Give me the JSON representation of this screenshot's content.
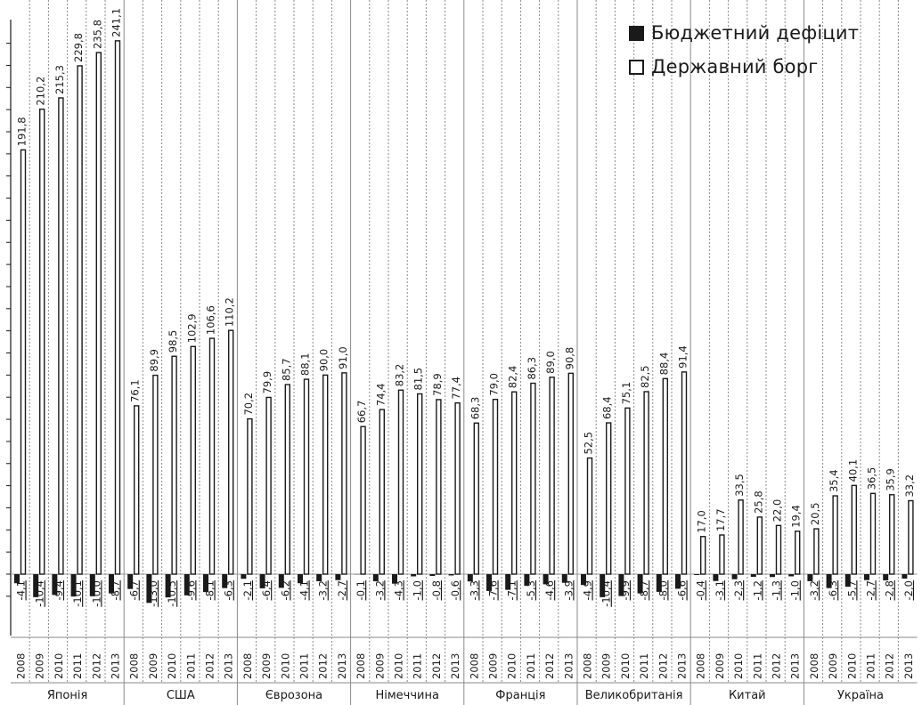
{
  "chart_data": {
    "type": "bar",
    "categories": [
      "Японія",
      "США",
      "Єврозона",
      "Німеччина",
      "Франція",
      "Великобританія",
      "Китай",
      "Україна"
    ],
    "years": [
      "2008",
      "2009",
      "2010",
      "2011",
      "2012",
      "2013"
    ],
    "series": [
      {
        "name": "Бюджетний дефіцит",
        "color": "#1a1a1a",
        "values": [
          [
            -4.1,
            -10.4,
            -9.4,
            -10.1,
            -10.0,
            -8.7
          ],
          [
            -6.7,
            -13.0,
            -10.5,
            -9.6,
            -8.1,
            -6.3
          ],
          [
            -2.1,
            -6.4,
            -6.2,
            -4.1,
            -3.2,
            -2.7
          ],
          [
            -0.1,
            -3.2,
            -4.3,
            -1.0,
            -0.8,
            -0.6
          ],
          [
            -3.3,
            -7.6,
            -7.1,
            -5.3,
            -4.6,
            -3.9
          ],
          [
            -4.9,
            -10.4,
            -9.9,
            -8.7,
            -8.0,
            -6.6
          ],
          [
            -0.4,
            -3.1,
            -2.3,
            -1.2,
            -1.3,
            -1.0
          ],
          [
            -3.2,
            -6.3,
            -5.7,
            -2.7,
            -2.8,
            -2.0
          ]
        ],
        "labels": [
          [
            "-4,1",
            "-10,4",
            "-9,4",
            "-10,1",
            "-10,0",
            "-8,7"
          ],
          [
            "-6,7",
            "-13,0",
            "-10,5",
            "-9,6",
            "-8,1",
            "-6,3"
          ],
          [
            "-2,1",
            "-6,4",
            "-6,2",
            "-4,1",
            "-3,2",
            "-2,7"
          ],
          [
            "-0,1",
            "-3,2",
            "-4,3",
            "-1,0",
            "-0,8",
            "-0,6"
          ],
          [
            "-3,3",
            "-7,6",
            "-7,1",
            "-5,3",
            "-4,6",
            "-3,9"
          ],
          [
            "-4,9",
            "-10,4",
            "-9,9",
            "-8,7",
            "-8,0",
            "-6,6"
          ],
          [
            "-0,4",
            "-3,1",
            "-2,3",
            "-1,2",
            "-1,3",
            "-1,0"
          ],
          [
            "-3,2",
            "-6,3",
            "-5,7",
            "-2,7",
            "-2,8",
            "-2,0"
          ]
        ]
      },
      {
        "name": "Державний борг",
        "color": "#ffffff",
        "values": [
          [
            191.8,
            210.2,
            215.3,
            229.8,
            235.8,
            241.1
          ],
          [
            76.1,
            89.9,
            98.5,
            102.9,
            106.6,
            110.2
          ],
          [
            70.2,
            79.9,
            85.7,
            88.1,
            90.0,
            91.0
          ],
          [
            66.7,
            74.4,
            83.2,
            81.5,
            78.9,
            77.4
          ],
          [
            68.3,
            79.0,
            82.4,
            86.3,
            89.0,
            90.8
          ],
          [
            52.5,
            68.4,
            75.1,
            82.5,
            88.4,
            91.4
          ],
          [
            17.0,
            17.7,
            33.5,
            25.8,
            22.0,
            19.4
          ],
          [
            20.5,
            35.4,
            40.1,
            36.5,
            35.9,
            33.2
          ]
        ],
        "labels": [
          [
            "191,8",
            "210,2",
            "215,3",
            "229,8",
            "235,8",
            "241,1"
          ],
          [
            "76,1",
            "89,9",
            "98,5",
            "102,9",
            "106,6",
            "110,2"
          ],
          [
            "70,2",
            "79,9",
            "85,7",
            "88,1",
            "90,0",
            "91,0"
          ],
          [
            "66,7",
            "74,4",
            "83,2",
            "81,5",
            "78,9",
            "77,4"
          ],
          [
            "68,3",
            "79,0",
            "82,4",
            "86,3",
            "89,0",
            "90,8"
          ],
          [
            "52,5",
            "68,4",
            "75,1",
            "82,5",
            "88,4",
            "91,4"
          ],
          [
            "17,0",
            "17,7",
            "33,5",
            "25,8",
            "22,0",
            "19,4"
          ],
          [
            "20,5",
            "35,4",
            "40,1",
            "36,5",
            "35,9",
            "33,2"
          ]
        ]
      }
    ],
    "ylim": [
      -16,
      245
    ],
    "grid": "vertical dotted",
    "legend": "top-right",
    "title": "",
    "xlabel": "",
    "ylabel": ""
  }
}
